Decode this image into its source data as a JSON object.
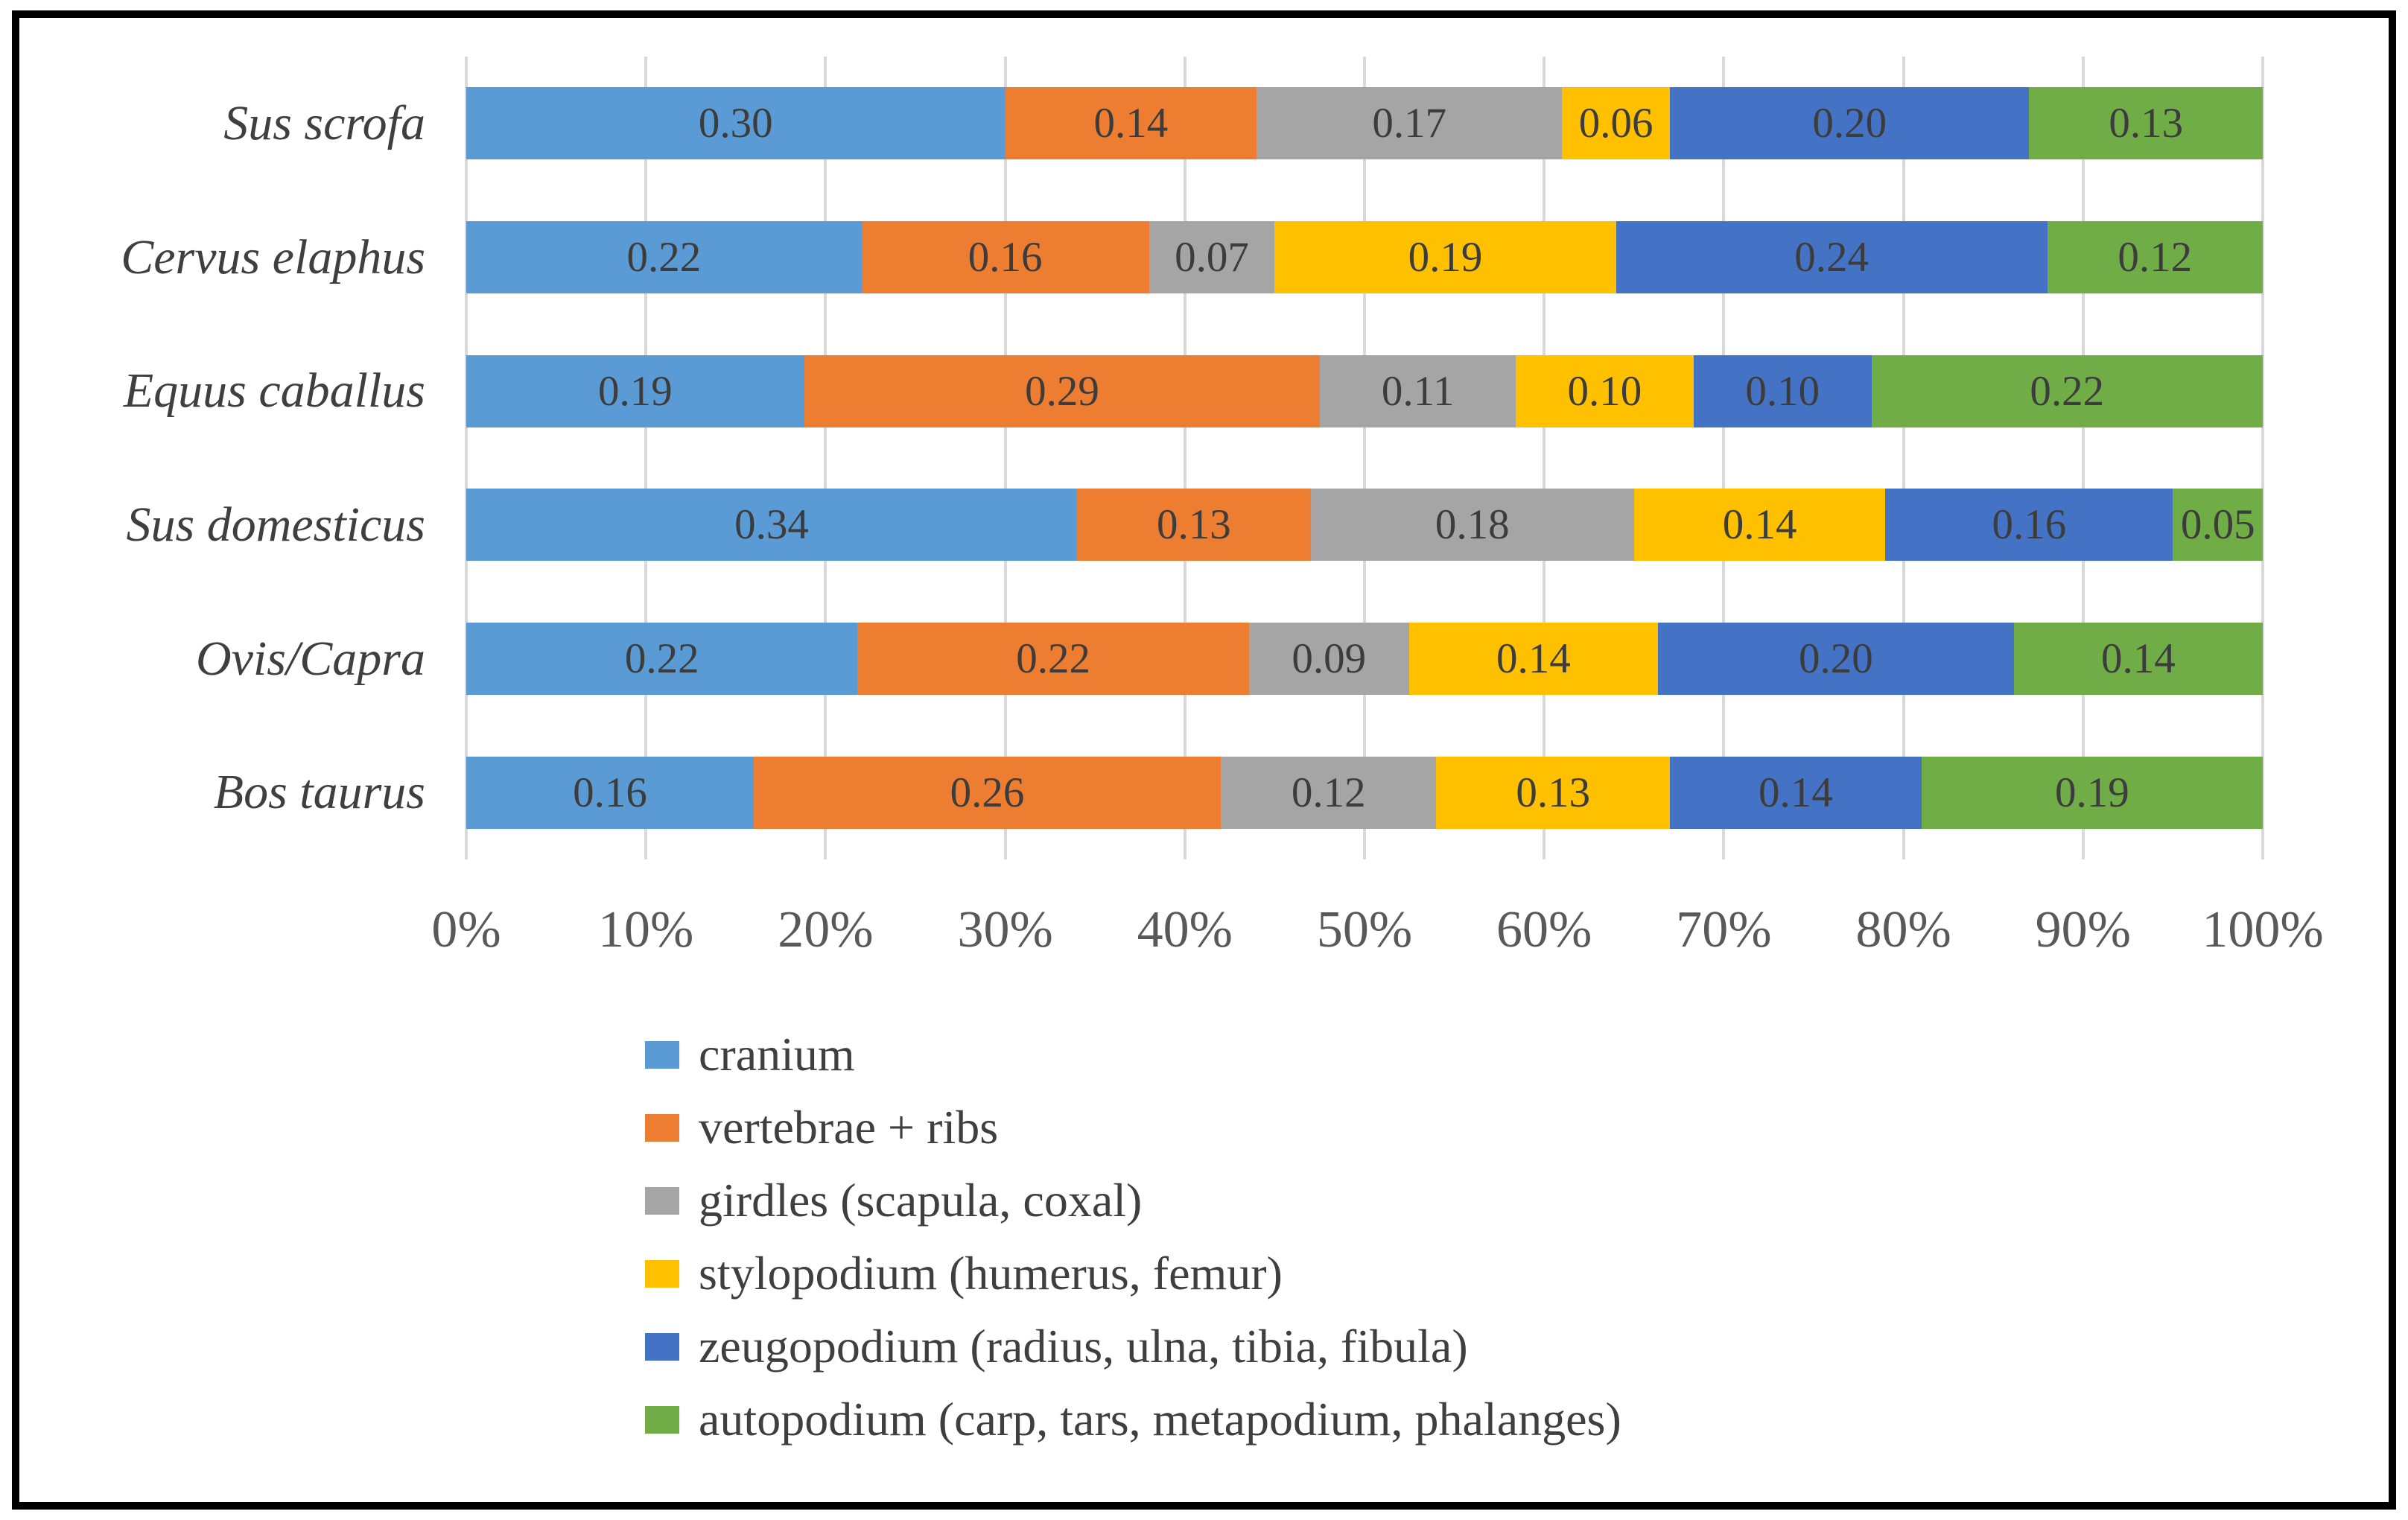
{
  "figure": {
    "background": "#ffffff",
    "border_color": "#000000"
  },
  "chart_data": {
    "type": "bar",
    "orientation": "horizontal",
    "stacked": true,
    "title": "",
    "xlabel": "",
    "ylabel": "",
    "categories": [
      "Sus scrofa",
      "Cervus elaphus",
      "Equus caballus",
      "Sus domesticus",
      "Ovis/Capra",
      "Bos taurus"
    ],
    "categories_italic": true,
    "series": [
      {
        "name": "cranium",
        "color": "#5B9BD5",
        "values": [
          0.3,
          0.22,
          0.19,
          0.34,
          0.22,
          0.16
        ]
      },
      {
        "name": "vertebrae + ribs",
        "color": "#ED7D31",
        "values": [
          0.14,
          0.16,
          0.29,
          0.13,
          0.22,
          0.26
        ]
      },
      {
        "name": "girdles (scapula, coxal)",
        "color": "#A5A5A5",
        "values": [
          0.17,
          0.07,
          0.11,
          0.18,
          0.09,
          0.12
        ]
      },
      {
        "name": "stylopodium (humerus, femur)",
        "color": "#FFC000",
        "values": [
          0.06,
          0.19,
          0.1,
          0.14,
          0.14,
          0.13
        ]
      },
      {
        "name": "zeugopodium (radius, ulna, tibia, fibula)",
        "color": "#4472C4",
        "values": [
          0.2,
          0.24,
          0.1,
          0.16,
          0.2,
          0.14
        ]
      },
      {
        "name": "autopodium (carp, tars, metapodium, phalanges)",
        "color": "#70AD47",
        "values": [
          0.13,
          0.12,
          0.22,
          0.05,
          0.14,
          0.19
        ]
      }
    ],
    "x_axis": {
      "min": 0,
      "max": 1,
      "tick_labels": [
        "0%",
        "10%",
        "20%",
        "30%",
        "40%",
        "50%",
        "60%",
        "70%",
        "80%",
        "90%",
        "100%"
      ]
    },
    "value_label_decimals": 2,
    "grid": true,
    "gridline_color": "#D9D9D9",
    "data_label_color": "#3c3c3c",
    "axis_text_color": "#595959",
    "legend_position": "bottom-left"
  }
}
